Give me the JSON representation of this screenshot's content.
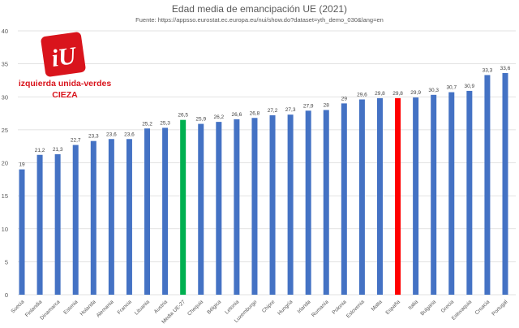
{
  "chart_data": {
    "type": "bar",
    "title": "Edad media de emancipación UE (2021)",
    "subtitle": "Fuente: https://appsso.eurostat.ec.europa.eu/nui/show.do?dataset=yth_demo_030&lang=en",
    "xlabel": "",
    "ylabel": "",
    "ylim": [
      0,
      40
    ],
    "yticks": [
      0,
      5,
      10,
      15,
      20,
      25,
      30,
      35,
      40
    ],
    "grid": true,
    "categories": [
      "Suecia",
      "Finlandia",
      "Dinamarca",
      "Estonia",
      "Holanda",
      "Alemania",
      "Francia",
      "Lituania",
      "Austria",
      "Media UE-27",
      "Chequia",
      "Bélgica",
      "Letonia",
      "Luxemburgo",
      "Chipre",
      "Hungría",
      "Irlanda",
      "Rumanía",
      "Polonia",
      "Eslovenia",
      "Malta",
      "España",
      "Italia",
      "Bulgaria",
      "Grecia",
      "Eslovaquia",
      "Croacia",
      "Portugal"
    ],
    "values": [
      19,
      21.2,
      21.3,
      22.7,
      23.3,
      23.6,
      23.6,
      25.2,
      25.3,
      26.5,
      25.9,
      26.2,
      26.6,
      26.8,
      27.2,
      27.3,
      27.9,
      28,
      29,
      29.6,
      29.8,
      29.8,
      29.9,
      30.3,
      30.7,
      30.9,
      33.3,
      33.6
    ],
    "data_labels": [
      "19",
      "21,2",
      "21,3",
      "22,7",
      "23,3",
      "23,6",
      "23,6",
      "25,2",
      "25,3",
      "26,5",
      "25,9",
      "26,2",
      "26,6",
      "26,8",
      "27,2",
      "27,3",
      "27,9",
      "28",
      "29",
      "29,6",
      "29,8",
      "29,8",
      "29,9",
      "30,3",
      "30,7",
      "30,9",
      "33,3",
      "33,6"
    ],
    "colors": {
      "default": "#4472c4",
      "Media UE-27": "#00b050",
      "España": "#ff0000",
      "grid": "#d9d9d9"
    }
  },
  "logo": {
    "line1": "izquierda unida-verdes",
    "line2": "CIEZA",
    "mark": "iU",
    "color": "#d9141c"
  }
}
